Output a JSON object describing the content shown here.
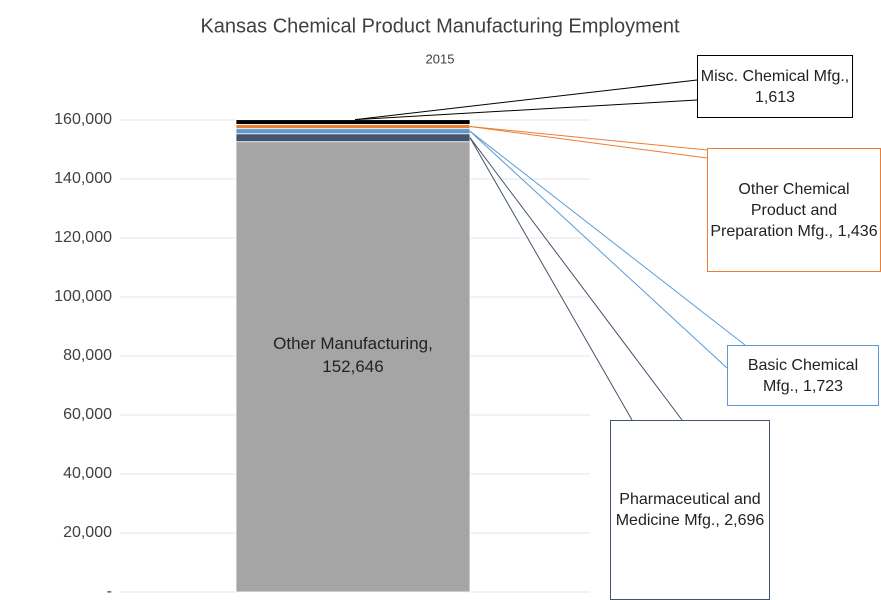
{
  "chart_data": {
    "type": "stacked-bar",
    "title": "Kansas Chemical Product Manufacturing Employment",
    "subtitle": "2015",
    "categories": [
      null
    ],
    "series": [
      {
        "name": "Other Manufacturing,",
        "color": "#a5a5a5",
        "values": [
          152646
        ],
        "value_labels": [
          "152,646"
        ]
      },
      {
        "name": "Pharmaceutical and Medicine Mfg.,",
        "color": "#44546a",
        "values": [
          2696
        ],
        "value_labels": [
          "2,696"
        ]
      },
      {
        "name": "Basic Chemical Mfg.,",
        "color": "#5b9bd5",
        "values": [
          1723
        ],
        "value_labels": [
          "1,723"
        ]
      },
      {
        "name": "Other Chemical Product and Preparation Mfg.,",
        "color": "#ed7d31",
        "values": [
          1436
        ],
        "value_labels": [
          "1,436"
        ]
      },
      {
        "name": "Misc. Chemical Mfg.,",
        "color": "#000000",
        "values": [
          1613
        ],
        "value_labels": [
          "1,613"
        ]
      }
    ],
    "ylim": [
      0,
      180000
    ],
    "yticks": [
      {
        "value": 0,
        "label": "-"
      },
      {
        "value": 20000,
        "label": "20,000"
      },
      {
        "value": 40000,
        "label": "40,000"
      },
      {
        "value": 60000,
        "label": "60,000"
      },
      {
        "value": 80000,
        "label": "80,000"
      },
      {
        "value": 100000,
        "label": "100,000"
      },
      {
        "value": 120000,
        "label": "120,000"
      },
      {
        "value": 140000,
        "label": "140,000"
      },
      {
        "value": 160000,
        "label": "160,000"
      }
    ],
    "grid": true
  }
}
